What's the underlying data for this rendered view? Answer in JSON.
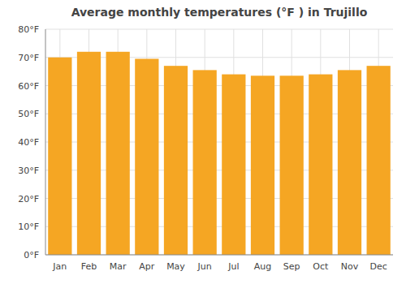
{
  "chart_data": {
    "type": "bar",
    "title": "Average monthly temperatures (°F ) in Trujillo",
    "categories": [
      "Jan",
      "Feb",
      "Mar",
      "Apr",
      "May",
      "Jun",
      "Jul",
      "Aug",
      "Sep",
      "Oct",
      "Nov",
      "Dec"
    ],
    "values": [
      70,
      72,
      72,
      69.5,
      67,
      65.5,
      64,
      63.5,
      63.5,
      64,
      65.5,
      67
    ],
    "color": "#F5A623",
    "ylim": [
      0,
      80
    ],
    "yticks": [
      {
        "value": 0,
        "label": "0°F"
      },
      {
        "value": 10,
        "label": "10°F"
      },
      {
        "value": 20,
        "label": "20°F"
      },
      {
        "value": 30,
        "label": "30°F"
      },
      {
        "value": 40,
        "label": "40°F"
      },
      {
        "value": 50,
        "label": "50°F"
      },
      {
        "value": 60,
        "label": "60°F"
      },
      {
        "value": 70,
        "label": "70°F"
      },
      {
        "value": 80,
        "label": "80°F"
      }
    ],
    "grid": true
  }
}
